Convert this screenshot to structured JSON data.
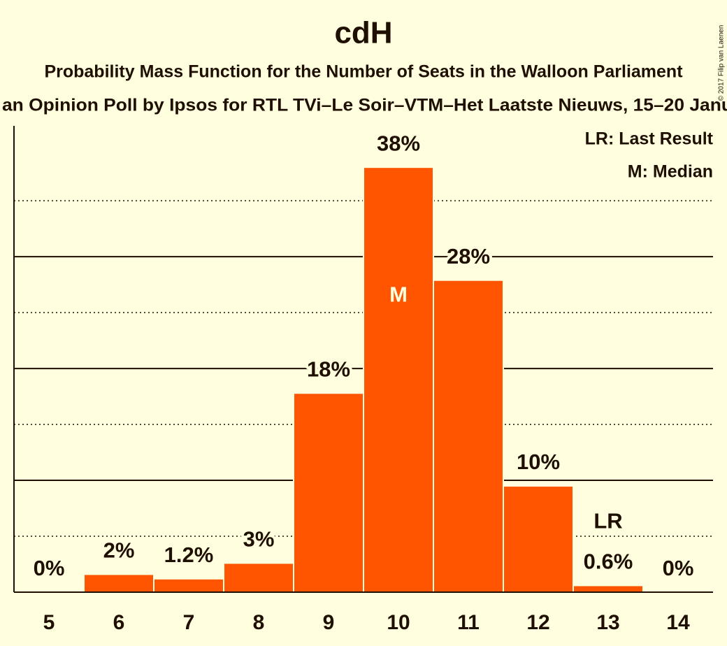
{
  "chart_data": {
    "type": "bar",
    "title": "cdH",
    "subtitle": "Probability Mass Function for the Number of Seats in the Walloon Parliament",
    "subtitle2": "an Opinion Poll by Ipsos for RTL TVi–Le Soir–VTM–Het Laatste Nieuws, 15–20 Janu",
    "copyright": "© 2017 Filip van Laenen",
    "categories": [
      "5",
      "6",
      "7",
      "8",
      "9",
      "10",
      "11",
      "12",
      "13",
      "14"
    ],
    "values": [
      0,
      1.6,
      1.2,
      2.6,
      17.8,
      38,
      27.9,
      9.5,
      0.6,
      0
    ],
    "value_labels": [
      "0%",
      "2%",
      "1.2%",
      "3%",
      "18%",
      "38%",
      "28%",
      "10%",
      "0.6%",
      "0%"
    ],
    "color": "#ff5500",
    "ylim": [
      0,
      41.7
    ],
    "grid_major": [
      10,
      20,
      30
    ],
    "grid_minor": [
      5,
      15,
      25,
      35
    ],
    "annotations": [
      {
        "text": "M",
        "category": "10"
      },
      {
        "text": "LR",
        "category": "13"
      }
    ],
    "legend": [
      "LR: Last Result",
      "M: Median"
    ],
    "legend_position": "top-right"
  }
}
